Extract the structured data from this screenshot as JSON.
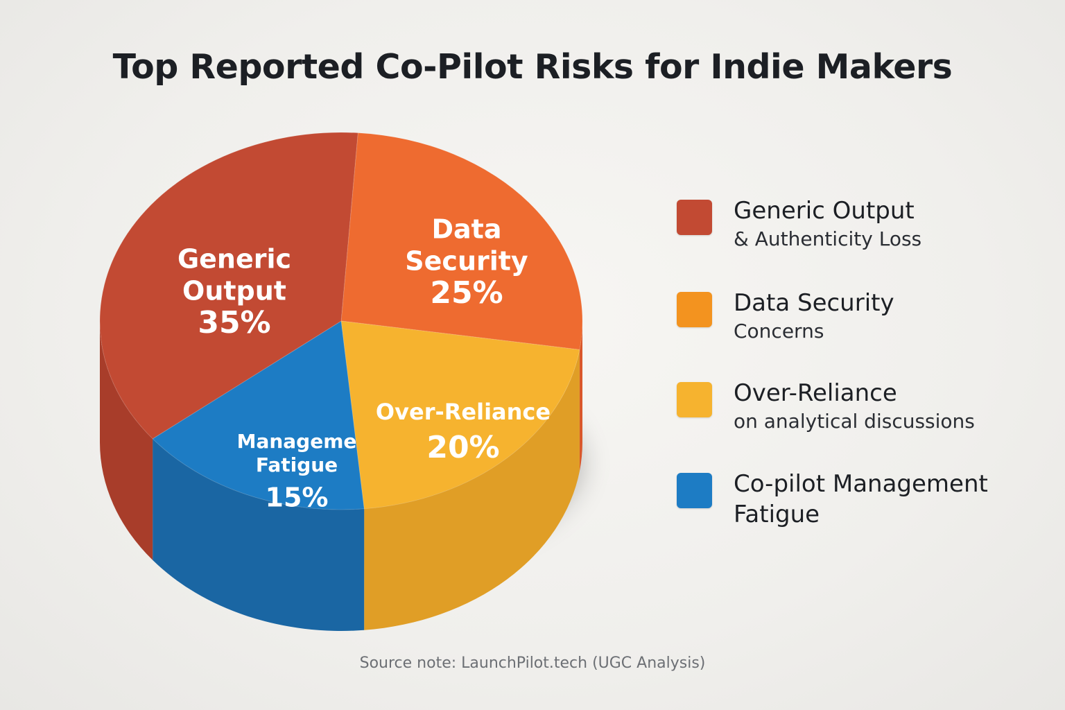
{
  "chart_data": {
    "type": "pie",
    "title": "Top Reported Co-Pilot Risks for Indie Makers",
    "slices": [
      {
        "label_lines": [
          "Generic",
          "Output"
        ],
        "value": 35,
        "value_label": "35%",
        "color": "#c24a33",
        "side_color": "#a83d2a"
      },
      {
        "label_lines": [
          "Data",
          "Security"
        ],
        "value": 25,
        "value_label": "25%",
        "color": "#ee6b30",
        "side_color": "#d9572a"
      },
      {
        "label_lines": [
          "Over-Reliance"
        ],
        "value": 20,
        "value_label": "20%",
        "color": "#f6b32f",
        "side_color": "#e09e26"
      },
      {
        "label_lines": [
          "Manageme",
          "Fatigue"
        ],
        "value": 15,
        "value_label": "15%",
        "color": "#1d7cc4",
        "side_color": "#1a66a3"
      }
    ],
    "legend": [
      {
        "main": "Generic Output",
        "sub": "& Authenticity Loss",
        "color": "#c24a33"
      },
      {
        "main": "Data Security",
        "sub": "Concerns",
        "color": "#f3931f"
      },
      {
        "main": "Over-Reliance",
        "sub": "on analytical discussions",
        "color": "#f6b32f"
      },
      {
        "main": "Co-pilot Management",
        "sub": "Fatigue",
        "color": "#1d7cc4"
      }
    ],
    "legend_placement": "right"
  },
  "source_note": "Source note:  LaunchPilot.tech (UGC Analysis)"
}
